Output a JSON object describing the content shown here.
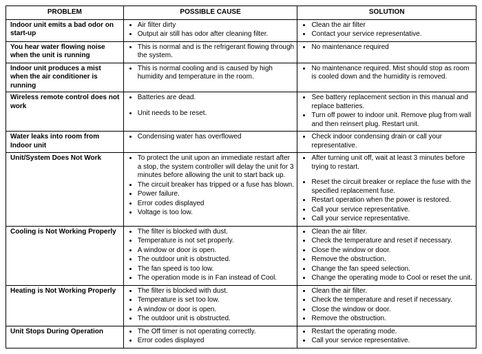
{
  "headers": {
    "problem": "PROBLEM",
    "cause": "POSSIBLE CAUSE",
    "solution": "SOLUTION"
  },
  "rows": [
    {
      "problem": "Indoor unit  emits a bad odor on start-up",
      "causes": [
        "Air filter dirty",
        "Output air still has odor after cleaning filter."
      ],
      "solutions": [
        "Clean the air filter",
        "Contact your service representative."
      ]
    },
    {
      "problem": "You hear water flowing noise when the unit is running",
      "causes": [
        "This is normal and is the refrigerant flowing through the system."
      ],
      "solutions": [
        "No maintenance required"
      ]
    },
    {
      "problem": "Indoor unit produces a mist when the air conditioner is running",
      "causes": [
        "This is normal cooling and is caused by high humidity and temperature in the room."
      ],
      "solutions": [
        "No maintenance required. Mist should stop as room is cooled down and the humidity is removed."
      ]
    },
    {
      "problem": "Wireless remote control does not work",
      "causes": [
        "Batteries are dead.",
        "Unit needs to be reset."
      ],
      "cause_spaced": [
        1
      ],
      "solutions": [
        "See battery replacement section in this manual and replace batteries.",
        "Turn off power to indoor unit. Remove plug from wall and then reinsert plug. Restart unit."
      ]
    },
    {
      "problem": "Water leaks into room from Indoor unit",
      "causes": [
        "Condensing water has overflowed"
      ],
      "solutions": [
        "Check indoor condensing drain or call your representative."
      ]
    },
    {
      "problem": "Unit/System Does Not Work",
      "causes": [
        "To protect the unit upon an immediate restart after a stop, the system controller will delay the unit for 3 minutes before allowing the unit to start back up.",
        "The circuit breaker has tripped or a fuse has blown.",
        "Power failure.",
        "Error codes displayed",
        "Voltage is too low."
      ],
      "solutions": [
        "After turning unit off, wait at least 3 minutes before trying to restart.",
        "Reset the circuit breaker or replace the fuse with the specified replacement fuse.",
        "Restart operation when the power is restored.",
        "Call your service representative.",
        "Call your service representative."
      ],
      "solution_spaced": [
        1
      ]
    },
    {
      "problem": "Cooling is Not Working Properly",
      "causes": [
        "The filter is blocked with dust.",
        "Temperature is not set properly.",
        "A window or door is open.",
        "The outdoor unit is obstructed.",
        "The fan speed is too low.",
        "The operation mode is in Fan instead of Cool."
      ],
      "solutions": [
        "Clean the air filter.",
        "Check the temperature and reset if necessary.",
        "Close the window or door.",
        "Remove the obstruction.",
        "Change the fan speed selection.",
        "Change the operating mode to Cool or reset the unit."
      ]
    },
    {
      "problem": "Heating is Not Working Properly",
      "causes": [
        "The filter is blocked with dust.",
        "Temperature is set too low.",
        "A window or door is open.",
        "The outdoor unit is obstructed."
      ],
      "solutions": [
        "Clean the air filter.",
        "Check the temperature and reset if necessary.",
        "Close the window or door.",
        "Remove the obstruction."
      ]
    },
    {
      "problem": "Unit Stops During Operation",
      "causes": [
        "The Off timer is not operating correctly.",
        "Error codes displayed"
      ],
      "solutions": [
        "Restart the operating mode.",
        "Call your service representative."
      ]
    }
  ]
}
